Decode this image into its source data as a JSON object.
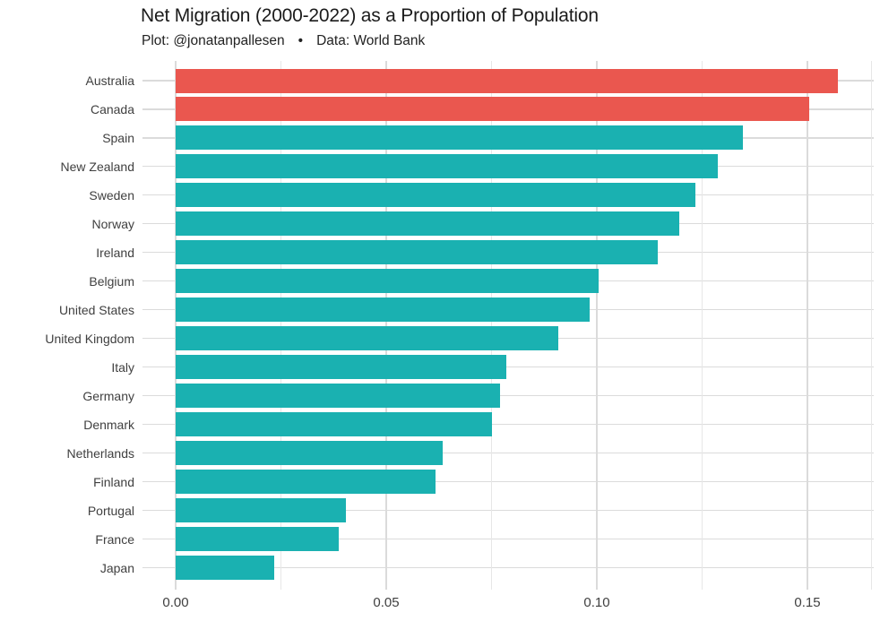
{
  "header": {
    "title": "Net Migration (2000-2022) as a Proportion of Population",
    "credit_plot": "Plot: @jonatanpallesen",
    "credit_separator": "•",
    "credit_data": "Data: World Bank"
  },
  "colors": {
    "highlight_bar": "#EA574F",
    "default_bar": "#1AB1B1",
    "grid_major": "#DBDBDB",
    "grid_minor": "#E7E7E7",
    "title_text": "#1B1B1B",
    "subtitle_text": "#222222",
    "axis_text": "#404040"
  },
  "chart_data": {
    "type": "bar",
    "orientation": "horizontal",
    "title": "Net Migration (2000-2022) as a Proportion of Population",
    "subtitle": "Plot: @jonatanpallesen • Data: World Bank",
    "categories": [
      "Australia",
      "Canada",
      "Spain",
      "New Zealand",
      "Sweden",
      "Norway",
      "Ireland",
      "Belgium",
      "United States",
      "United Kingdom",
      "Italy",
      "Germany",
      "Denmark",
      "Netherlands",
      "Finland",
      "Portugal",
      "France",
      "Japan"
    ],
    "values": [
      0.1572,
      0.1505,
      0.1346,
      0.1287,
      0.1233,
      0.1195,
      0.1145,
      0.1005,
      0.0984,
      0.0909,
      0.0785,
      0.0771,
      0.0752,
      0.0633,
      0.0617,
      0.0404,
      0.0387,
      0.0235
    ],
    "highlighted_categories": [
      "Australia",
      "Canada"
    ],
    "xlabel": "",
    "ylabel": "",
    "x_ticks": {
      "values": [
        0,
        0.05,
        0.1,
        0.15
      ],
      "labels": [
        "0.00",
        "0.05",
        "0.10",
        "0.15"
      ]
    },
    "x_minor_gridlines": [
      0.025,
      0.075,
      0.125,
      0.1653
    ],
    "xlim": [
      -0.0079,
      0.1657
    ],
    "grid": true,
    "legend_position": "none"
  }
}
